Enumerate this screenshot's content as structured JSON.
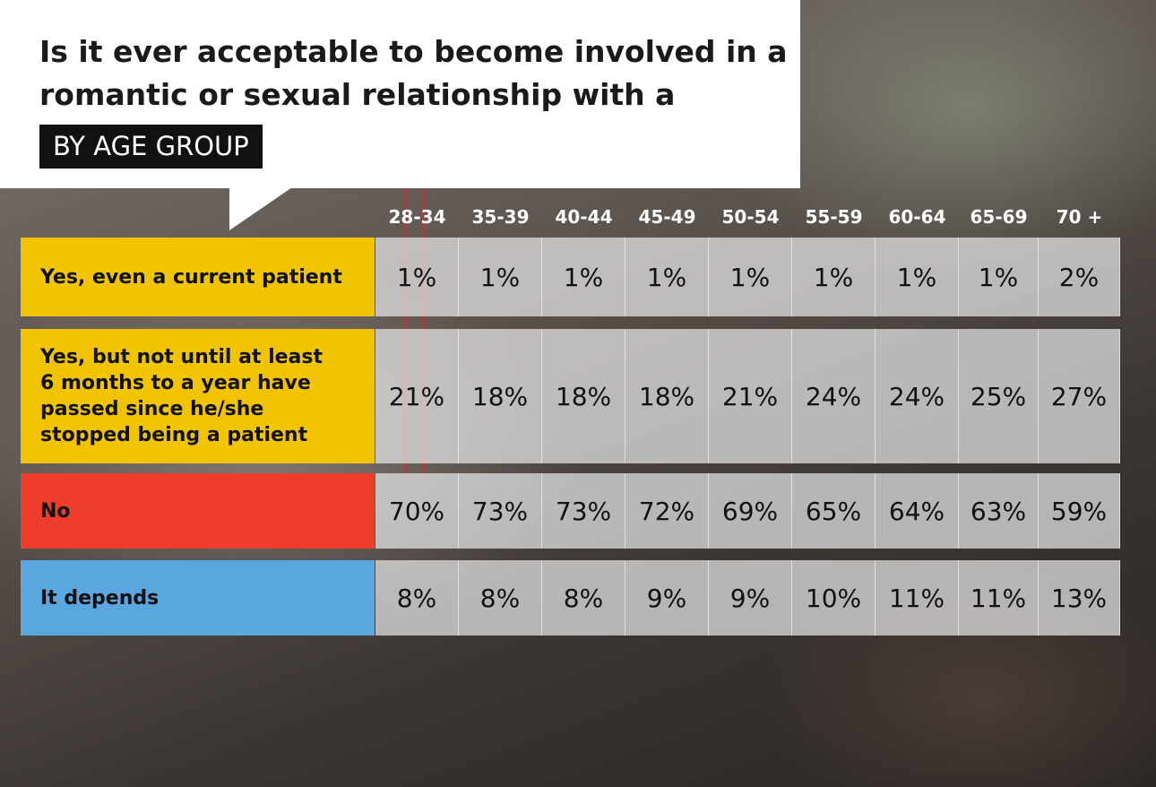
{
  "title": "Is it ever acceptable to become involved in a romantic or sexual relationship with a patient?",
  "subtitle": "BY AGE GROUP",
  "colors": {
    "yes_current": "#f2c400",
    "yes_later": "#f2c400",
    "no": "#f03c2a",
    "depends": "#5aa7e0"
  },
  "chart_data": {
    "type": "table",
    "title": "Is it ever acceptable to become involved in a romantic or sexual relationship with a patient?",
    "subtitle": "BY AGE GROUP",
    "columns": [
      "28-34",
      "35-39",
      "40-44",
      "45-49",
      "50-54",
      "55-59",
      "60-64",
      "65-69",
      "70 +"
    ],
    "rows": [
      {
        "label": "Yes, even a current patient",
        "color_key": "yes_current",
        "values": [
          "1%",
          "1%",
          "1%",
          "1%",
          "1%",
          "1%",
          "1%",
          "1%",
          "2%"
        ]
      },
      {
        "label": "Yes, but not until at least 6 months  to a year have passed since he/she stopped being a patient",
        "color_key": "yes_later",
        "values": [
          "21%",
          "18%",
          "18%",
          "18%",
          "21%",
          "24%",
          "24%",
          "25%",
          "27%"
        ]
      },
      {
        "label": "No",
        "color_key": "no",
        "values": [
          "70%",
          "73%",
          "73%",
          "72%",
          "69%",
          "65%",
          "64%",
          "63%",
          "59%"
        ]
      },
      {
        "label": "It depends",
        "color_key": "depends",
        "values": [
          "8%",
          "8%",
          "8%",
          "9%",
          "9%",
          "10%",
          "11%",
          "11%",
          "13%"
        ]
      }
    ]
  }
}
